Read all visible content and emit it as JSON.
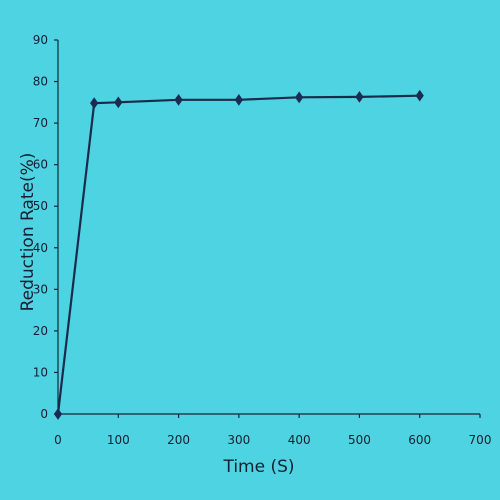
{
  "chart_data": {
    "type": "line",
    "title": "",
    "xlabel": "Time (S)",
    "ylabel": "Reduction Rate(%)",
    "xlim": [
      0,
      700
    ],
    "ylim": [
      0,
      90
    ],
    "xticks": [
      0,
      100,
      200,
      300,
      400,
      500,
      600,
      700
    ],
    "yticks": [
      0,
      10,
      20,
      30,
      40,
      50,
      60,
      70,
      80,
      90
    ],
    "grid": false,
    "legend": "none",
    "series": [
      {
        "color": "#1c2b52",
        "marker": "diamond",
        "x": [
          0,
          60,
          100,
          200,
          300,
          400,
          500,
          600
        ],
        "y": [
          0,
          74.8,
          75.0,
          75.6,
          75.6,
          76.2,
          76.3,
          76.6
        ]
      }
    ]
  }
}
